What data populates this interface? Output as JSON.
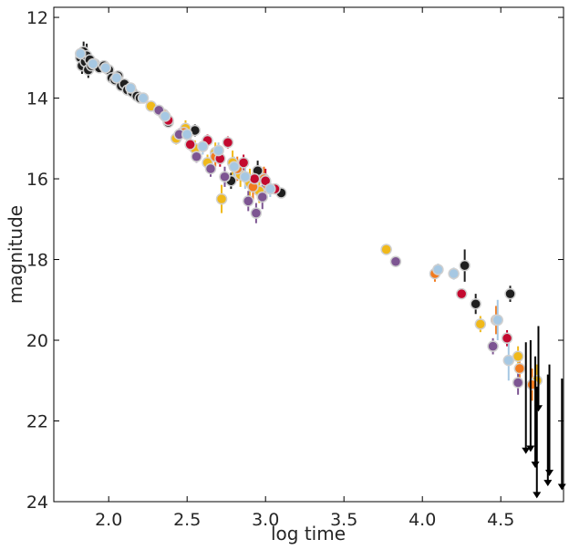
{
  "chart_data": {
    "type": "scatter",
    "title": "",
    "xlabel": "log time",
    "ylabel": "magnitude",
    "xlim": [
      1.65,
      4.9
    ],
    "ylim": [
      24,
      11.75
    ],
    "y_inverted": true,
    "grid": false,
    "legend": "none",
    "x_ticks": [
      2.0,
      2.5,
      3.0,
      3.5,
      4.0,
      4.5
    ],
    "x_tick_labels": [
      "2.0",
      "2.5",
      "3.0",
      "3.5",
      "4.0",
      "4.5"
    ],
    "y_ticks": [
      12,
      14,
      16,
      18,
      20,
      22,
      24
    ],
    "y_tick_labels": [
      "12",
      "14",
      "16",
      "18",
      "20",
      "22",
      "24"
    ],
    "series": [
      {
        "name": "black",
        "color": "#1f1f1f",
        "points": [
          [
            1.82,
            13.0,
            0.25
          ],
          [
            1.83,
            13.2,
            0.2
          ],
          [
            1.84,
            12.85,
            0.25
          ],
          [
            1.85,
            13.1,
            0.2
          ],
          [
            1.86,
            12.95,
            0.3
          ],
          [
            1.87,
            13.3,
            0.2
          ],
          [
            1.88,
            13.05,
            0.15
          ],
          [
            1.89,
            13.2,
            0.1
          ],
          [
            1.91,
            13.15,
            0.1
          ],
          [
            1.94,
            13.25,
            0.1
          ],
          [
            1.97,
            13.2,
            0.1
          ],
          [
            2.0,
            13.3,
            0.1
          ],
          [
            2.02,
            13.5,
            0.1
          ],
          [
            2.04,
            13.55,
            0.1
          ],
          [
            2.06,
            13.45,
            0.1
          ],
          [
            2.08,
            13.7,
            0.1
          ],
          [
            2.1,
            13.65,
            0.1
          ],
          [
            2.12,
            13.8,
            0.1
          ],
          [
            2.15,
            13.85,
            0.1
          ],
          [
            2.18,
            13.95,
            0.1
          ],
          [
            2.2,
            14.0,
            0.1
          ],
          [
            2.38,
            14.6,
            0.1
          ],
          [
            2.55,
            14.8,
            0.15
          ],
          [
            2.78,
            16.05,
            0.2
          ],
          [
            2.95,
            15.8,
            0.25
          ],
          [
            3.1,
            16.35,
            0.1
          ],
          [
            4.27,
            18.15,
            0.4
          ],
          [
            4.34,
            19.1,
            0.25
          ],
          [
            4.56,
            18.85,
            0.2
          ]
        ]
      },
      {
        "name": "yellow",
        "color": "#f0b91b",
        "points": [
          [
            2.27,
            14.2,
            0.1
          ],
          [
            2.43,
            15.0,
            0.15
          ],
          [
            2.49,
            14.75,
            0.2
          ],
          [
            2.55,
            15.25,
            0.2
          ],
          [
            2.63,
            15.6,
            0.2
          ],
          [
            2.68,
            15.35,
            0.25
          ],
          [
            2.72,
            16.5,
            0.35
          ],
          [
            2.79,
            15.6,
            0.3
          ],
          [
            2.84,
            15.9,
            0.3
          ],
          [
            2.9,
            16.1,
            0.35
          ],
          [
            2.96,
            16.3,
            0.3
          ],
          [
            3.77,
            17.75,
            0.1
          ],
          [
            4.37,
            19.6,
            0.2
          ],
          [
            4.61,
            20.4,
            0.25
          ],
          [
            4.73,
            21.0,
            0.4
          ]
        ]
      },
      {
        "name": "orange",
        "color": "#f27b1f",
        "points": [
          [
            2.35,
            14.4,
            0.1
          ],
          [
            2.48,
            14.85,
            0.15
          ],
          [
            2.68,
            15.45,
            0.25
          ],
          [
            2.82,
            15.75,
            0.3
          ],
          [
            2.92,
            16.2,
            0.35
          ],
          [
            2.99,
            16.0,
            0.3
          ],
          [
            4.08,
            18.35,
            0.2
          ],
          [
            4.47,
            19.5,
            0.35
          ],
          [
            4.62,
            20.7,
            0.3
          ],
          [
            4.7,
            21.1,
            0.4
          ]
        ]
      },
      {
        "name": "red",
        "color": "#c3092f",
        "points": [
          [
            2.38,
            14.55,
            0.1
          ],
          [
            2.52,
            15.15,
            0.15
          ],
          [
            2.63,
            15.05,
            0.15
          ],
          [
            2.71,
            15.5,
            0.2
          ],
          [
            2.76,
            15.1,
            0.15
          ],
          [
            2.86,
            15.6,
            0.2
          ],
          [
            2.93,
            16.0,
            0.25
          ],
          [
            3.0,
            16.05,
            0.3
          ],
          [
            3.06,
            16.25,
            0.1
          ],
          [
            4.25,
            18.85,
            0.1
          ],
          [
            4.54,
            19.95,
            0.2
          ]
        ]
      },
      {
        "name": "purple",
        "color": "#7d5592",
        "points": [
          [
            2.32,
            14.3,
            0.1
          ],
          [
            2.45,
            14.9,
            0.15
          ],
          [
            2.56,
            15.45,
            0.15
          ],
          [
            2.65,
            15.75,
            0.2
          ],
          [
            2.74,
            15.95,
            0.25
          ],
          [
            2.89,
            16.55,
            0.25
          ],
          [
            2.94,
            16.85,
            0.25
          ],
          [
            2.98,
            16.45,
            0.3
          ],
          [
            3.83,
            18.05,
            0.1
          ],
          [
            4.45,
            20.15,
            0.2
          ],
          [
            4.61,
            21.05,
            0.3
          ]
        ]
      },
      {
        "name": "light blue",
        "color": "#a6c8e3",
        "points": [
          [
            1.82,
            12.9,
            0.15
          ],
          [
            1.9,
            13.15,
            0.1
          ],
          [
            1.98,
            13.25,
            0.1
          ],
          [
            2.05,
            13.5,
            0.1
          ],
          [
            2.14,
            13.75,
            0.1
          ],
          [
            2.22,
            14.0,
            0.1
          ],
          [
            2.36,
            14.45,
            0.1
          ],
          [
            2.5,
            14.9,
            0.15
          ],
          [
            2.6,
            15.2,
            0.2
          ],
          [
            2.7,
            15.3,
            0.2
          ],
          [
            2.8,
            15.7,
            0.25
          ],
          [
            2.87,
            15.95,
            0.3
          ],
          [
            3.03,
            16.25,
            0.2
          ],
          [
            4.1,
            18.25,
            0.15
          ],
          [
            4.2,
            18.35,
            0.15
          ],
          [
            4.48,
            19.5,
            0.5
          ],
          [
            4.55,
            20.5,
            0.5
          ]
        ]
      }
    ],
    "upper_limits": {
      "color": "#000000",
      "points": [
        [
          4.66,
          22.75
        ],
        [
          4.69,
          22.7
        ],
        [
          4.72,
          23.1
        ],
        [
          4.73,
          23.85
        ],
        [
          4.74,
          21.7
        ],
        [
          4.8,
          23.55
        ],
        [
          4.81,
          23.3
        ],
        [
          4.89,
          23.65
        ]
      ]
    }
  }
}
